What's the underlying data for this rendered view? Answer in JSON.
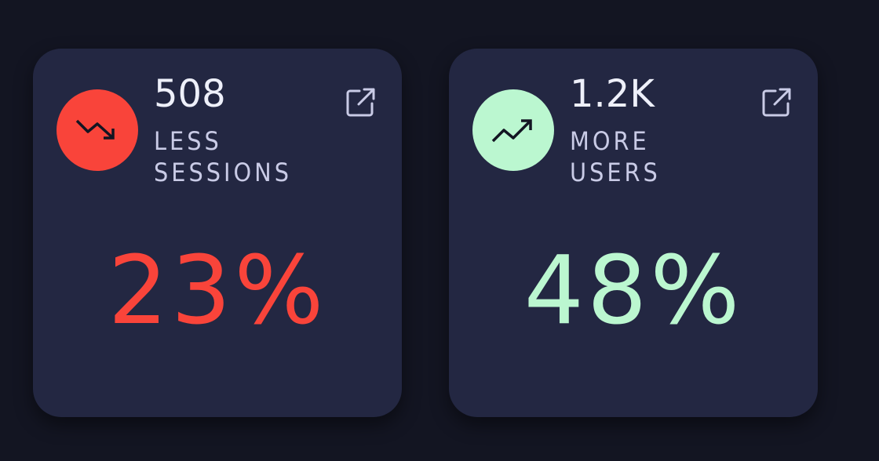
{
  "cards": [
    {
      "value": "508",
      "label": "LESS SESSIONS",
      "percent": "23%",
      "trend": "down",
      "color": "#f9443a"
    },
    {
      "value": "1.2K",
      "label": "MORE USERS",
      "percent": "48%",
      "trend": "up",
      "color": "#bbf7d0"
    }
  ]
}
